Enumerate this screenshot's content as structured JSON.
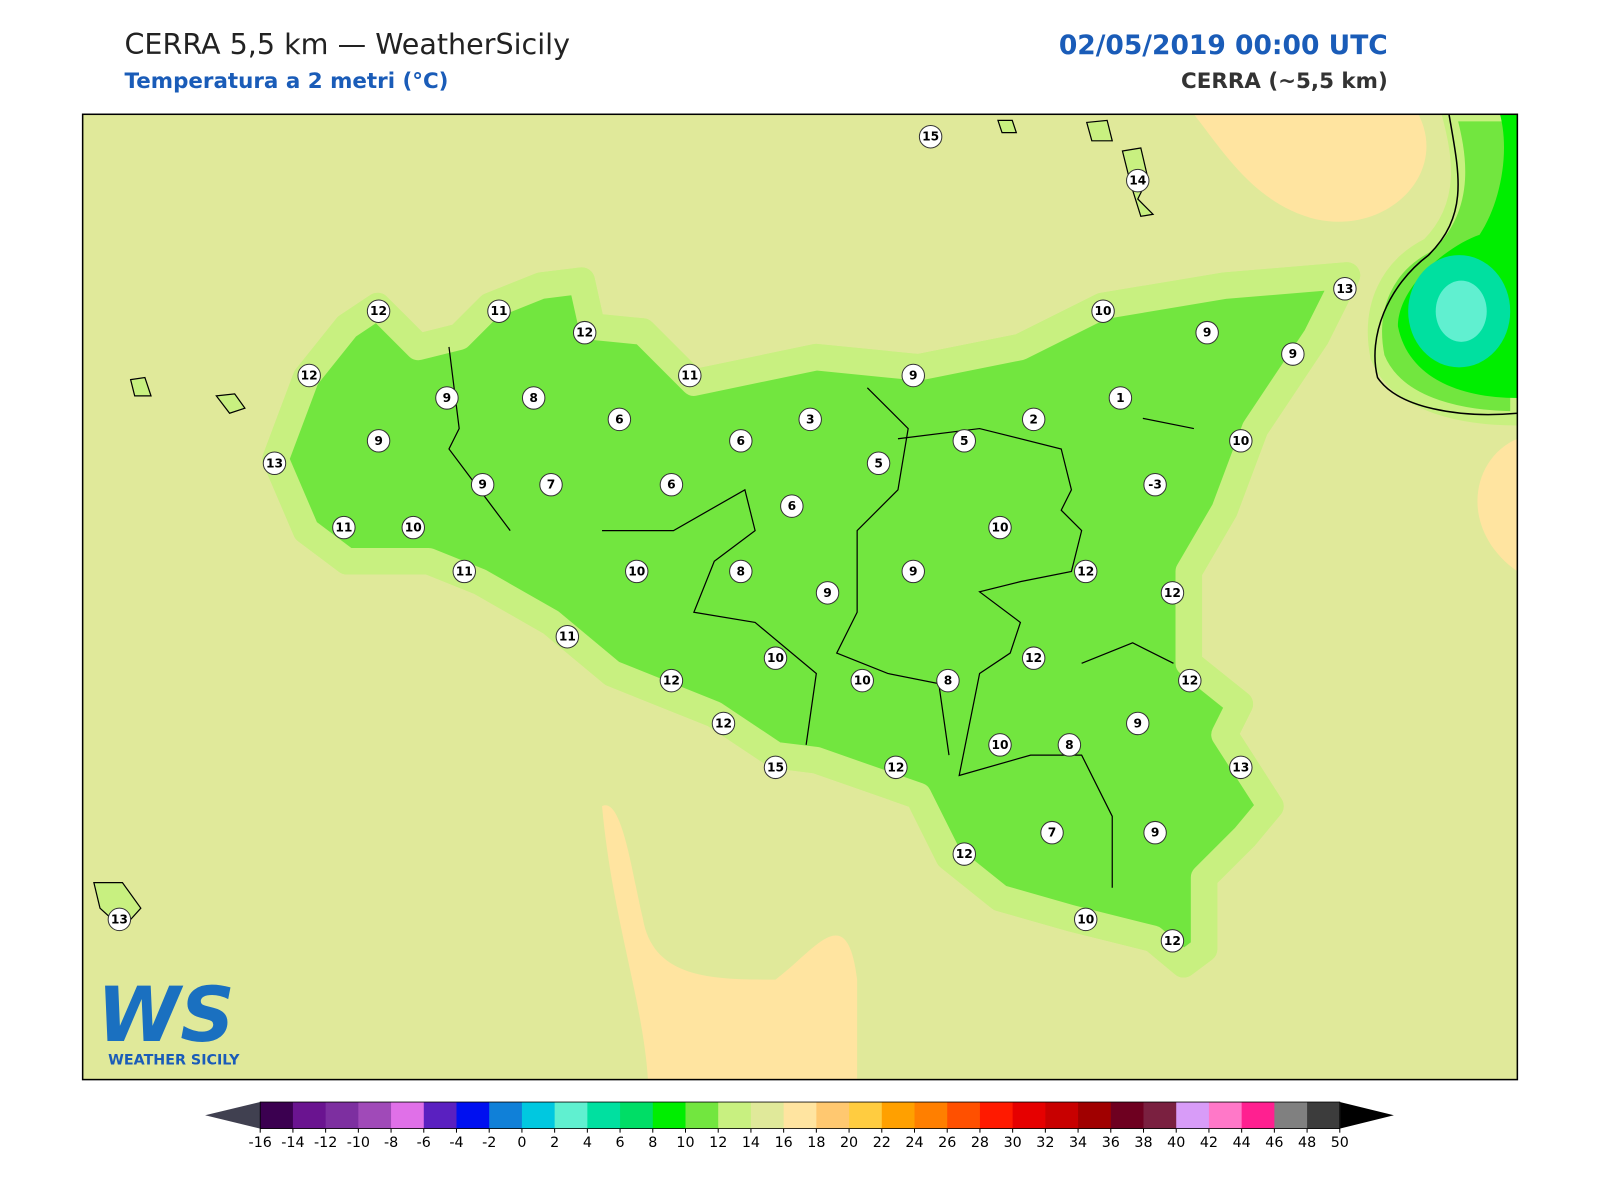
{
  "header": {
    "title": "CERRA 5,5 km — WeatherSicily",
    "subtitle": "Temperatura a 2 metri (°C)",
    "datetime": "02/05/2019 00:00 UTC",
    "model": "CERRA (~5,5 km)"
  },
  "logo": {
    "mark": "WS",
    "text": "WEATHER SICILY"
  },
  "station_values": [
    15,
    14,
    12,
    11,
    12,
    12,
    9,
    8,
    11,
    9,
    10,
    9,
    13,
    9,
    1,
    2,
    3,
    6,
    6,
    9,
    13,
    5,
    5,
    10,
    9,
    7,
    6,
    6,
    -3,
    11,
    10,
    10,
    11,
    10,
    8,
    9,
    9,
    12,
    12,
    11,
    12,
    10,
    10,
    8,
    12,
    12,
    12,
    9,
    10,
    8,
    15,
    12,
    13,
    7,
    9,
    12,
    10,
    12,
    13
  ],
  "colorbar": {
    "ticks": [
      -16,
      -14,
      -12,
      -10,
      -8,
      -6,
      -4,
      -2,
      0,
      2,
      4,
      6,
      8,
      10,
      12,
      14,
      16,
      18,
      20,
      22,
      24,
      26,
      28,
      30,
      32,
      34,
      36,
      38,
      40,
      42,
      44,
      46,
      48,
      50
    ],
    "colors": [
      "#3b0050",
      "#6a1490",
      "#7d2fa0",
      "#a04ab8",
      "#e070e8",
      "#5a20c0",
      "#0010f0",
      "#1080d8",
      "#00c8e0",
      "#60f0d0",
      "#00e0a0",
      "#00dd66",
      "#00ee00",
      "#72e63f",
      "#c8f080",
      "#e0e99a",
      "#ffe4a0",
      "#ffc870",
      "#ffcc40",
      "#ffa000",
      "#ff7f00",
      "#ff5000",
      "#ff1a00",
      "#e60000",
      "#c80000",
      "#a00000",
      "#6e0020",
      "#7a2040",
      "#d89cf8",
      "#ff78c8",
      "#ff2090",
      "#808080",
      "#3c3c3c"
    ],
    "under_color": "#404050",
    "over_color": "#000000"
  }
}
